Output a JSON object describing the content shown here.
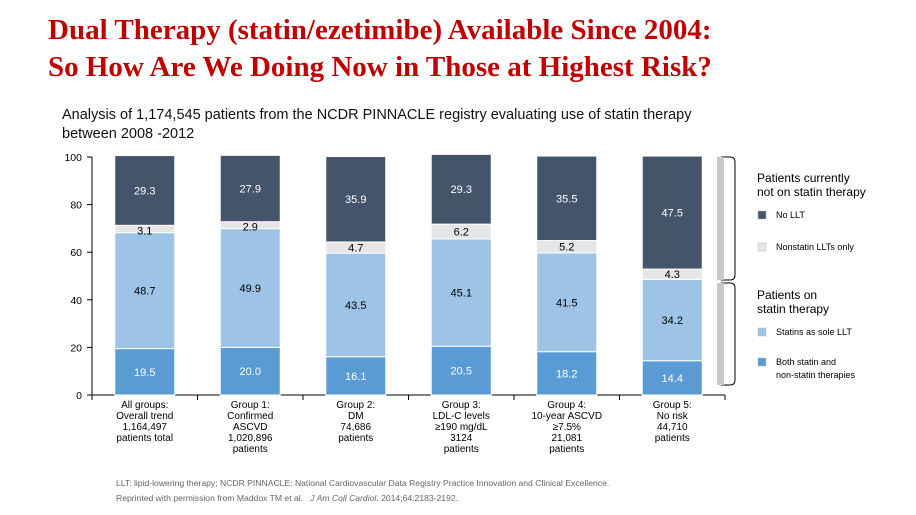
{
  "slide": {
    "title_line1": "Dual Therapy (statin/ezetimibe)  Available Since 2004:",
    "title_line2": "So How Are We Doing Now in Those at Highest Risk?",
    "subtitle_line1": "Analysis of 1,174,545 patients from the NCDR PINNACLE registry evaluating use of statin therapy",
    "subtitle_line2": "between 2008 -2012",
    "footnote_line1": "LLT: lipid-lowering therapy; NCDR PINNACLE:   National Cardiovascular Data Registry Practice Innovation and Clinical Excellence.",
    "footnote_line2_prefix": "Reprinted with permission from Maddox TM et al.",
    "footnote_journal": "J Am Coll Cardiol",
    "footnote_line2_suffix": ". 2014;64:2183-2192."
  },
  "colors": {
    "no_llt": "#44546a",
    "nonstatin_only": "#e7e6e6",
    "statin_sole": "#9dc3e6",
    "both": "#5b9bd5",
    "bracket": "#c9c9c9",
    "title": "#c00000"
  },
  "chart_data": {
    "type": "bar",
    "stacked": true,
    "ylim": [
      0,
      100
    ],
    "yticks": [
      0,
      20,
      40,
      60,
      80,
      100
    ],
    "categories": [
      [
        "All groups:",
        "Overall trend",
        "1,164,497",
        "patients total"
      ],
      [
        "Group 1:",
        "Confirmed",
        "ASCVD",
        "1,020,896",
        "patients"
      ],
      [
        "Group 2:",
        "DM",
        "74,686",
        "patients"
      ],
      [
        "Group 3:",
        "LDL-C levels",
        "≥190 mg/dL",
        "3124",
        "patients"
      ],
      [
        "Group 4:",
        "10-year ASCVD",
        "≥7.5%",
        "21,081",
        "patients"
      ],
      [
        "Group 5:",
        "No risk",
        "44,710",
        "patients"
      ]
    ],
    "series": [
      {
        "name": "Both statin and non-statin therapies",
        "key": "both",
        "values": [
          19.5,
          20.0,
          16.1,
          20.5,
          18.2,
          14.4
        ],
        "labels": [
          "19.5",
          "20.0",
          "16.1",
          "20.5",
          "18.2",
          "14.4"
        ]
      },
      {
        "name": "Statins as sole LLT",
        "key": "statin_sole",
        "values": [
          48.7,
          49.9,
          43.5,
          45.1,
          41.5,
          34.2
        ],
        "labels": [
          "48.7",
          "49.9",
          "43.5",
          "45.1",
          "41.5",
          "34.2"
        ]
      },
      {
        "name": "Nonstatin LLTs only",
        "key": "nonstatin_only",
        "values": [
          3.1,
          2.9,
          4.7,
          6.2,
          5.2,
          4.3
        ],
        "labels": [
          "3.1",
          "2.9",
          "4.7",
          "6.2",
          "5.2",
          "4.3"
        ]
      },
      {
        "name": "No LLT",
        "key": "no_llt",
        "values": [
          29.3,
          27.9,
          35.9,
          29.3,
          35.5,
          47.5
        ],
        "labels": [
          "29.3",
          "27.9",
          "35.9",
          "29.3",
          "35.5",
          "47.5"
        ]
      }
    ],
    "legend": {
      "group_not_on_statin": [
        "Patients currently",
        "not on statin therapy"
      ],
      "group_on_statin": [
        "Patients on",
        "statin therapy"
      ],
      "items": [
        {
          "key": "no_llt",
          "label": [
            "No LLT"
          ]
        },
        {
          "key": "nonstatin_only",
          "label": [
            "Nonstatin LLTs only"
          ]
        },
        {
          "key": "statin_sole",
          "label": [
            "Statins as sole LLT"
          ]
        },
        {
          "key": "both",
          "label": [
            "Both statin and",
            "non-statin therapies"
          ]
        }
      ],
      "placement": "right"
    }
  }
}
